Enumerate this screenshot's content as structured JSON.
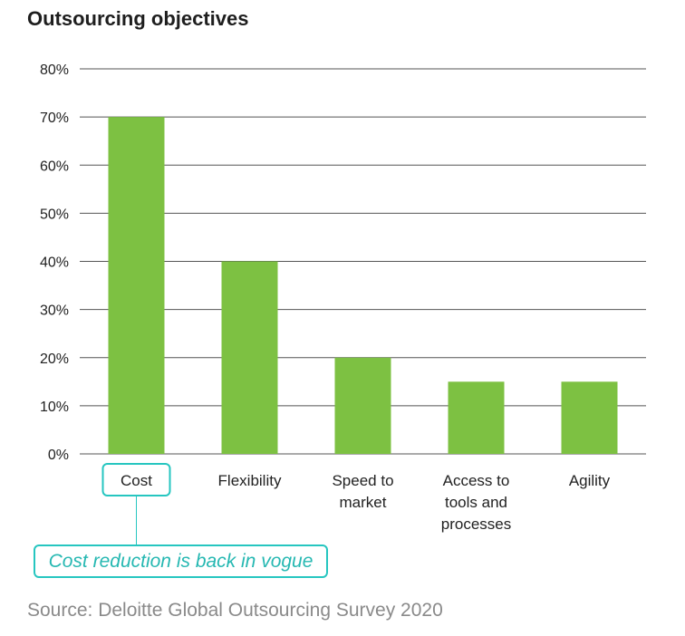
{
  "title": "Outsourcing objectives",
  "annotation": "Cost reduction is back in vogue",
  "source": "Source: Deloitte Global Outsourcing Survey 2020",
  "colors": {
    "bar": "#7dc142",
    "accent": "#26c6c0",
    "grid": "#555555"
  },
  "chart_data": {
    "type": "bar",
    "title": "Outsourcing objectives",
    "categories": [
      [
        "Cost"
      ],
      [
        "Flexibility"
      ],
      [
        "Speed to",
        "market"
      ],
      [
        "Access to",
        "tools and",
        "processes"
      ],
      [
        "Agility"
      ]
    ],
    "values": [
      70,
      40,
      20,
      15,
      15
    ],
    "ylim": [
      0,
      80
    ],
    "yticks": [
      "0%",
      "10%",
      "20%",
      "30%",
      "40%",
      "50%",
      "60%",
      "70%",
      "80%"
    ],
    "grid": true,
    "highlight_category": "Cost"
  }
}
